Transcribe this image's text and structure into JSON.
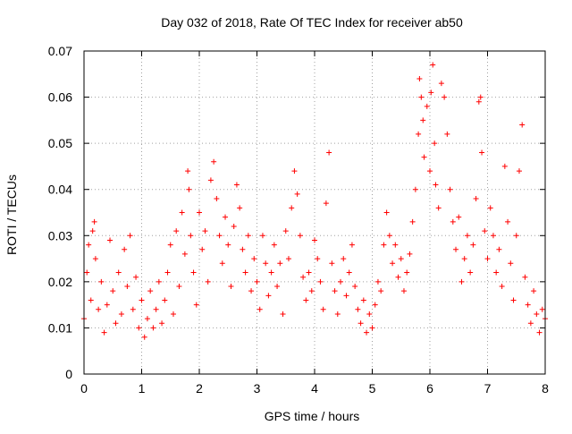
{
  "chart_data": {
    "type": "scatter",
    "title": "Day 032 of 2018, Rate Of TEC Index for receiver ab50",
    "xlabel": "GPS time / hours",
    "ylabel": "ROTI / TECUs",
    "xlim": [
      0,
      8
    ],
    "ylim": [
      0,
      0.07
    ],
    "x_ticks": [
      "0",
      "1",
      "2",
      "3",
      "4",
      "5",
      "6",
      "7",
      "8"
    ],
    "y_ticks": [
      "0",
      "0.01",
      "0.02",
      "0.03",
      "0.04",
      "0.05",
      "0.06",
      "0.07"
    ],
    "grid": true,
    "marker": "plus",
    "series": [
      {
        "name": "ROTI",
        "color": "#ff0000",
        "points": [
          [
            0.0,
            0.012
          ],
          [
            0.05,
            0.022
          ],
          [
            0.08,
            0.028
          ],
          [
            0.12,
            0.016
          ],
          [
            0.15,
            0.031
          ],
          [
            0.18,
            0.033
          ],
          [
            0.2,
            0.025
          ],
          [
            0.25,
            0.014
          ],
          [
            0.3,
            0.02
          ],
          [
            0.35,
            0.009
          ],
          [
            0.4,
            0.015
          ],
          [
            0.45,
            0.029
          ],
          [
            0.5,
            0.018
          ],
          [
            0.55,
            0.011
          ],
          [
            0.6,
            0.022
          ],
          [
            0.65,
            0.013
          ],
          [
            0.7,
            0.027
          ],
          [
            0.75,
            0.019
          ],
          [
            0.8,
            0.03
          ],
          [
            0.85,
            0.014
          ],
          [
            0.9,
            0.021
          ],
          [
            0.95,
            0.01
          ],
          [
            1.0,
            0.016
          ],
          [
            1.05,
            0.008
          ],
          [
            1.1,
            0.012
          ],
          [
            1.15,
            0.018
          ],
          [
            1.2,
            0.01
          ],
          [
            1.25,
            0.014
          ],
          [
            1.3,
            0.02
          ],
          [
            1.35,
            0.011
          ],
          [
            1.4,
            0.016
          ],
          [
            1.45,
            0.022
          ],
          [
            1.5,
            0.028
          ],
          [
            1.55,
            0.013
          ],
          [
            1.6,
            0.031
          ],
          [
            1.65,
            0.019
          ],
          [
            1.7,
            0.035
          ],
          [
            1.75,
            0.026
          ],
          [
            1.8,
            0.044
          ],
          [
            1.82,
            0.04
          ],
          [
            1.85,
            0.03
          ],
          [
            1.9,
            0.022
          ],
          [
            1.95,
            0.015
          ],
          [
            2.0,
            0.035
          ],
          [
            2.05,
            0.027
          ],
          [
            2.1,
            0.031
          ],
          [
            2.15,
            0.02
          ],
          [
            2.2,
            0.042
          ],
          [
            2.25,
            0.046
          ],
          [
            2.3,
            0.038
          ],
          [
            2.35,
            0.03
          ],
          [
            2.4,
            0.024
          ],
          [
            2.45,
            0.034
          ],
          [
            2.5,
            0.028
          ],
          [
            2.55,
            0.019
          ],
          [
            2.6,
            0.032
          ],
          [
            2.65,
            0.041
          ],
          [
            2.7,
            0.036
          ],
          [
            2.75,
            0.027
          ],
          [
            2.8,
            0.022
          ],
          [
            2.85,
            0.03
          ],
          [
            2.9,
            0.018
          ],
          [
            2.95,
            0.025
          ],
          [
            3.0,
            0.02
          ],
          [
            3.05,
            0.014
          ],
          [
            3.1,
            0.03
          ],
          [
            3.15,
            0.024
          ],
          [
            3.2,
            0.017
          ],
          [
            3.25,
            0.022
          ],
          [
            3.3,
            0.028
          ],
          [
            3.35,
            0.019
          ],
          [
            3.4,
            0.024
          ],
          [
            3.45,
            0.013
          ],
          [
            3.5,
            0.031
          ],
          [
            3.55,
            0.025
          ],
          [
            3.6,
            0.036
          ],
          [
            3.65,
            0.044
          ],
          [
            3.7,
            0.039
          ],
          [
            3.75,
            0.03
          ],
          [
            3.8,
            0.021
          ],
          [
            3.85,
            0.016
          ],
          [
            3.9,
            0.022
          ],
          [
            3.95,
            0.018
          ],
          [
            4.0,
            0.029
          ],
          [
            4.05,
            0.025
          ],
          [
            4.1,
            0.02
          ],
          [
            4.15,
            0.014
          ],
          [
            4.2,
            0.037
          ],
          [
            4.25,
            0.048
          ],
          [
            4.3,
            0.024
          ],
          [
            4.35,
            0.018
          ],
          [
            4.4,
            0.013
          ],
          [
            4.45,
            0.02
          ],
          [
            4.5,
            0.025
          ],
          [
            4.55,
            0.017
          ],
          [
            4.6,
            0.022
          ],
          [
            4.65,
            0.028
          ],
          [
            4.7,
            0.019
          ],
          [
            4.75,
            0.014
          ],
          [
            4.8,
            0.011
          ],
          [
            4.85,
            0.016
          ],
          [
            4.9,
            0.009
          ],
          [
            4.95,
            0.013
          ],
          [
            5.0,
            0.01
          ],
          [
            5.05,
            0.015
          ],
          [
            5.1,
            0.02
          ],
          [
            5.15,
            0.018
          ],
          [
            5.2,
            0.028
          ],
          [
            5.25,
            0.035
          ],
          [
            5.3,
            0.03
          ],
          [
            5.35,
            0.024
          ],
          [
            5.4,
            0.028
          ],
          [
            5.45,
            0.021
          ],
          [
            5.5,
            0.025
          ],
          [
            5.55,
            0.018
          ],
          [
            5.6,
            0.022
          ],
          [
            5.65,
            0.026
          ],
          [
            5.7,
            0.033
          ],
          [
            5.75,
            0.04
          ],
          [
            5.8,
            0.052
          ],
          [
            5.82,
            0.064
          ],
          [
            5.85,
            0.06
          ],
          [
            5.88,
            0.055
          ],
          [
            5.9,
            0.047
          ],
          [
            5.95,
            0.058
          ],
          [
            6.0,
            0.044
          ],
          [
            6.02,
            0.061
          ],
          [
            6.05,
            0.067
          ],
          [
            6.08,
            0.05
          ],
          [
            6.1,
            0.041
          ],
          [
            6.15,
            0.036
          ],
          [
            6.2,
            0.063
          ],
          [
            6.25,
            0.06
          ],
          [
            6.3,
            0.052
          ],
          [
            6.35,
            0.04
          ],
          [
            6.4,
            0.033
          ],
          [
            6.45,
            0.027
          ],
          [
            6.5,
            0.034
          ],
          [
            6.55,
            0.02
          ],
          [
            6.6,
            0.025
          ],
          [
            6.65,
            0.03
          ],
          [
            6.7,
            0.022
          ],
          [
            6.75,
            0.028
          ],
          [
            6.8,
            0.038
          ],
          [
            6.85,
            0.059
          ],
          [
            6.88,
            0.06
          ],
          [
            6.9,
            0.048
          ],
          [
            6.95,
            0.031
          ],
          [
            7.0,
            0.025
          ],
          [
            7.05,
            0.036
          ],
          [
            7.1,
            0.03
          ],
          [
            7.15,
            0.022
          ],
          [
            7.2,
            0.027
          ],
          [
            7.25,
            0.019
          ],
          [
            7.3,
            0.045
          ],
          [
            7.35,
            0.033
          ],
          [
            7.4,
            0.024
          ],
          [
            7.45,
            0.016
          ],
          [
            7.5,
            0.03
          ],
          [
            7.55,
            0.044
          ],
          [
            7.6,
            0.054
          ],
          [
            7.65,
            0.021
          ],
          [
            7.7,
            0.015
          ],
          [
            7.75,
            0.011
          ],
          [
            7.8,
            0.018
          ],
          [
            7.85,
            0.013
          ],
          [
            7.9,
            0.009
          ],
          [
            7.95,
            0.014
          ],
          [
            8.0,
            0.012
          ]
        ]
      }
    ]
  }
}
